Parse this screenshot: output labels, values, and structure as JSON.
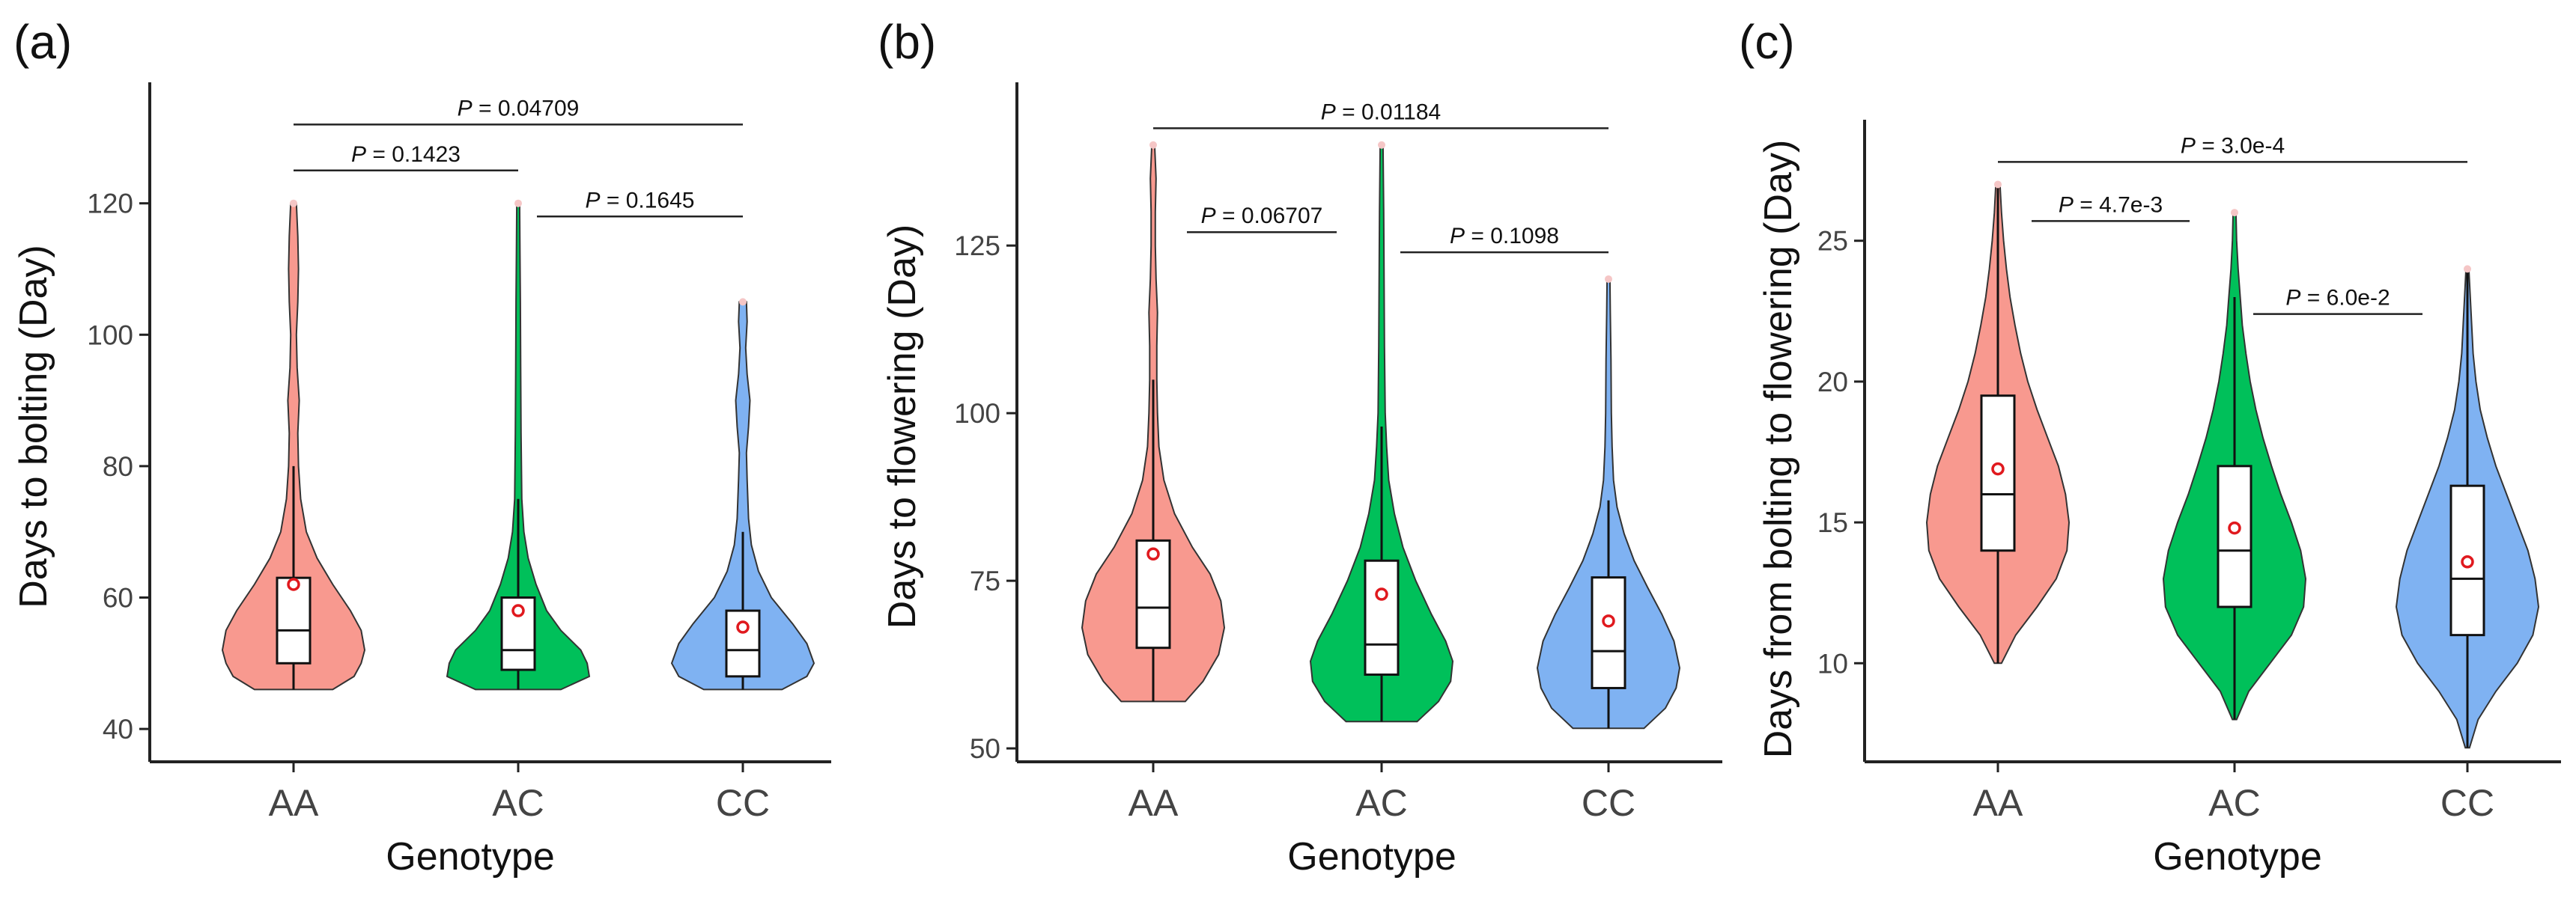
{
  "figure": {
    "panels": [
      "(a)",
      "(b)",
      "(c)"
    ]
  },
  "chart_data": [
    {
      "type": "violin",
      "panel_label": "(a)",
      "xlabel": "Genotype",
      "ylabel": "Days to bolting (Day)",
      "ylim": [
        35,
        135
      ],
      "yticks": [
        40,
        60,
        80,
        100,
        120
      ],
      "categories": [
        "AA",
        "AC",
        "CC"
      ],
      "colors": [
        "#F8998F",
        "#00C05A",
        "#7FB2F2"
      ],
      "groups": [
        {
          "name": "AA",
          "min": 46,
          "q1": 50,
          "median": 55,
          "q3": 63,
          "mean": 62,
          "max": 120,
          "whisker_low": 46,
          "whisker_high": 80,
          "density": [
            [
              46,
              0.55
            ],
            [
              48,
              0.85
            ],
            [
              50,
              0.95
            ],
            [
              52,
              1.0
            ],
            [
              55,
              0.95
            ],
            [
              58,
              0.8
            ],
            [
              62,
              0.55
            ],
            [
              66,
              0.33
            ],
            [
              70,
              0.18
            ],
            [
              75,
              0.1
            ],
            [
              80,
              0.07
            ],
            [
              85,
              0.06
            ],
            [
              90,
              0.08
            ],
            [
              95,
              0.05
            ],
            [
              100,
              0.04
            ],
            [
              105,
              0.06
            ],
            [
              110,
              0.07
            ],
            [
              115,
              0.06
            ],
            [
              120,
              0.04
            ]
          ]
        },
        {
          "name": "AC",
          "min": 46,
          "q1": 49,
          "median": 52,
          "q3": 60,
          "mean": 58,
          "max": 120,
          "whisker_low": 46,
          "whisker_high": 75,
          "density": [
            [
              46,
              0.6
            ],
            [
              48,
              1.0
            ],
            [
              50,
              0.97
            ],
            [
              52,
              0.88
            ],
            [
              55,
              0.6
            ],
            [
              58,
              0.4
            ],
            [
              62,
              0.25
            ],
            [
              66,
              0.14
            ],
            [
              70,
              0.08
            ],
            [
              75,
              0.05
            ],
            [
              85,
              0.04
            ],
            [
              95,
              0.035
            ],
            [
              105,
              0.03
            ],
            [
              112,
              0.025
            ],
            [
              120,
              0.02
            ]
          ]
        },
        {
          "name": "CC",
          "min": 46,
          "q1": 48,
          "median": 52,
          "q3": 58,
          "mean": 55.5,
          "max": 105,
          "whisker_low": 46,
          "whisker_high": 70,
          "density": [
            [
              46,
              0.55
            ],
            [
              48,
              0.9
            ],
            [
              50,
              1.0
            ],
            [
              53,
              0.9
            ],
            [
              56,
              0.7
            ],
            [
              60,
              0.4
            ],
            [
              64,
              0.22
            ],
            [
              68,
              0.12
            ],
            [
              72,
              0.08
            ],
            [
              78,
              0.06
            ],
            [
              82,
              0.05
            ],
            [
              86,
              0.08
            ],
            [
              90,
              0.1
            ],
            [
              94,
              0.06
            ],
            [
              98,
              0.04
            ],
            [
              102,
              0.06
            ],
            [
              105,
              0.05
            ]
          ]
        }
      ],
      "comparisons": [
        {
          "from": 0,
          "to": 1,
          "y": 125,
          "label": "0.1423"
        },
        {
          "from": 1,
          "to": 2,
          "y": 118,
          "label": "0.1645"
        },
        {
          "from": 0,
          "to": 2,
          "y": 132,
          "label": "0.04709"
        }
      ]
    },
    {
      "type": "violin",
      "panel_label": "(b)",
      "xlabel": "Genotype",
      "ylabel": "Days to flowering (Day)",
      "ylim": [
        48,
        146
      ],
      "yticks": [
        50,
        75,
        100,
        125
      ],
      "categories": [
        "AA",
        "AC",
        "CC"
      ],
      "colors": [
        "#F8998F",
        "#00C05A",
        "#7FB2F2"
      ],
      "groups": [
        {
          "name": "AA",
          "min": 57,
          "q1": 65,
          "median": 71,
          "q3": 81,
          "mean": 79,
          "max": 140,
          "whisker_low": 57,
          "whisker_high": 105,
          "density": [
            [
              57,
              0.45
            ],
            [
              60,
              0.7
            ],
            [
              64,
              0.92
            ],
            [
              68,
              1.0
            ],
            [
              72,
              0.95
            ],
            [
              76,
              0.8
            ],
            [
              80,
              0.55
            ],
            [
              85,
              0.3
            ],
            [
              90,
              0.15
            ],
            [
              95,
              0.08
            ],
            [
              100,
              0.06
            ],
            [
              105,
              0.05
            ],
            [
              110,
              0.05
            ],
            [
              115,
              0.06
            ],
            [
              120,
              0.04
            ],
            [
              125,
              0.03
            ],
            [
              130,
              0.03
            ],
            [
              135,
              0.04
            ],
            [
              140,
              0.02
            ]
          ]
        },
        {
          "name": "AC",
          "min": 54,
          "q1": 61,
          "median": 65.5,
          "q3": 78,
          "mean": 73,
          "max": 140,
          "whisker_low": 54,
          "whisker_high": 98,
          "density": [
            [
              54,
              0.5
            ],
            [
              57,
              0.8
            ],
            [
              60,
              0.97
            ],
            [
              63,
              1.0
            ],
            [
              66,
              0.9
            ],
            [
              70,
              0.7
            ],
            [
              75,
              0.48
            ],
            [
              80,
              0.3
            ],
            [
              85,
              0.18
            ],
            [
              90,
              0.1
            ],
            [
              95,
              0.07
            ],
            [
              100,
              0.05
            ],
            [
              110,
              0.04
            ],
            [
              120,
              0.035
            ],
            [
              130,
              0.03
            ],
            [
              140,
              0.02
            ]
          ]
        },
        {
          "name": "CC",
          "min": 53,
          "q1": 59,
          "median": 64.5,
          "q3": 75.5,
          "mean": 69,
          "max": 120,
          "whisker_low": 53,
          "whisker_high": 87,
          "density": [
            [
              53,
              0.5
            ],
            [
              56,
              0.8
            ],
            [
              59,
              0.95
            ],
            [
              62,
              1.0
            ],
            [
              66,
              0.92
            ],
            [
              70,
              0.75
            ],
            [
              74,
              0.55
            ],
            [
              78,
              0.36
            ],
            [
              82,
              0.22
            ],
            [
              86,
              0.12
            ],
            [
              90,
              0.07
            ],
            [
              95,
              0.05
            ],
            [
              100,
              0.04
            ],
            [
              108,
              0.035
            ],
            [
              115,
              0.025
            ],
            [
              120,
              0.02
            ]
          ]
        }
      ],
      "comparisons": [
        {
          "from": 0,
          "to": 1,
          "y": 127,
          "label": "0.06707"
        },
        {
          "from": 1,
          "to": 2,
          "y": 124,
          "label": "0.1098"
        },
        {
          "from": 0,
          "to": 2,
          "y": 142.5,
          "label": "0.01184"
        }
      ]
    },
    {
      "type": "violin",
      "panel_label": "(c)",
      "xlabel": "Genotype",
      "ylabel": "Days from bolting to flowering (Day)",
      "ylim": [
        6.5,
        28.5
      ],
      "yticks": [
        10,
        15,
        20,
        25
      ],
      "categories": [
        "AA",
        "AC",
        "CC"
      ],
      "colors": [
        "#F8998F",
        "#00C05A",
        "#7FB2F2"
      ],
      "groups": [
        {
          "name": "AA",
          "min": 10,
          "q1": 14,
          "median": 16,
          "q3": 19.5,
          "mean": 16.9,
          "max": 27,
          "whisker_low": 10,
          "whisker_high": 27,
          "density": [
            [
              10,
              0.05
            ],
            [
              11,
              0.25
            ],
            [
              12,
              0.55
            ],
            [
              13,
              0.82
            ],
            [
              14,
              0.97
            ],
            [
              15,
              1.0
            ],
            [
              16,
              0.95
            ],
            [
              17,
              0.85
            ],
            [
              18,
              0.7
            ],
            [
              19,
              0.55
            ],
            [
              20,
              0.42
            ],
            [
              21,
              0.32
            ],
            [
              22,
              0.24
            ],
            [
              23,
              0.17
            ],
            [
              24,
              0.12
            ],
            [
              25,
              0.08
            ],
            [
              26,
              0.05
            ],
            [
              27,
              0.03
            ]
          ]
        },
        {
          "name": "AC",
          "min": 8,
          "q1": 12,
          "median": 14,
          "q3": 17,
          "mean": 14.8,
          "max": 26,
          "whisker_low": 8,
          "whisker_high": 23,
          "density": [
            [
              8,
              0.03
            ],
            [
              9,
              0.2
            ],
            [
              10,
              0.5
            ],
            [
              11,
              0.8
            ],
            [
              12,
              0.97
            ],
            [
              13,
              1.0
            ],
            [
              14,
              0.93
            ],
            [
              15,
              0.8
            ],
            [
              16,
              0.65
            ],
            [
              17,
              0.52
            ],
            [
              18,
              0.4
            ],
            [
              19,
              0.3
            ],
            [
              20,
              0.22
            ],
            [
              21,
              0.16
            ],
            [
              22,
              0.11
            ],
            [
              23,
              0.08
            ],
            [
              24,
              0.05
            ],
            [
              25,
              0.03
            ],
            [
              26,
              0.02
            ]
          ]
        },
        {
          "name": "CC",
          "min": 7,
          "q1": 11,
          "median": 13,
          "q3": 16.3,
          "mean": 13.6,
          "max": 24,
          "whisker_low": 7,
          "whisker_high": 24,
          "density": [
            [
              7,
              0.03
            ],
            [
              8,
              0.15
            ],
            [
              9,
              0.4
            ],
            [
              10,
              0.7
            ],
            [
              11,
              0.92
            ],
            [
              12,
              1.0
            ],
            [
              13,
              0.95
            ],
            [
              14,
              0.85
            ],
            [
              15,
              0.7
            ],
            [
              16,
              0.55
            ],
            [
              17,
              0.4
            ],
            [
              18,
              0.28
            ],
            [
              19,
              0.18
            ],
            [
              20,
              0.12
            ],
            [
              21,
              0.08
            ],
            [
              22,
              0.06
            ],
            [
              23,
              0.04
            ],
            [
              24,
              0.02
            ]
          ]
        }
      ],
      "comparisons": [
        {
          "from": 0,
          "to": 1,
          "y": 25.7,
          "label": "4.7e-3"
        },
        {
          "from": 1,
          "to": 2,
          "y": 22.4,
          "label": "6.0e-2"
        },
        {
          "from": 0,
          "to": 2,
          "y": 27.8,
          "label": "3.0e-4"
        }
      ]
    }
  ]
}
